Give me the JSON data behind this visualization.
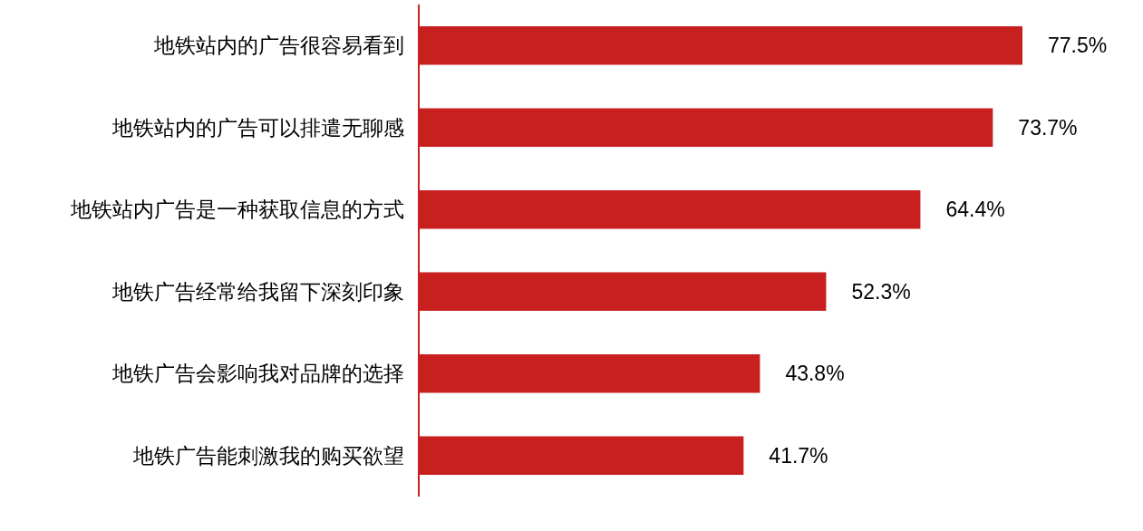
{
  "chart_data": {
    "type": "bar",
    "orientation": "horizontal",
    "color": "#c8201f",
    "categories": [
      "地铁站内的广告很容易看到",
      "地铁站内的广告可以排遣无聊感",
      "地铁站内广告是一种获取信息的方式",
      "地铁广告经常给我留下深刻印象",
      "地铁广告会影响我对品牌的选择",
      "地铁广告能刺激我的购买欲望"
    ],
    "values": [
      77.5,
      73.7,
      64.4,
      52.3,
      43.8,
      41.7
    ],
    "value_labels": [
      "77.5%",
      "73.7%",
      "64.4%",
      "52.3%",
      "43.8%",
      "41.7%"
    ]
  }
}
